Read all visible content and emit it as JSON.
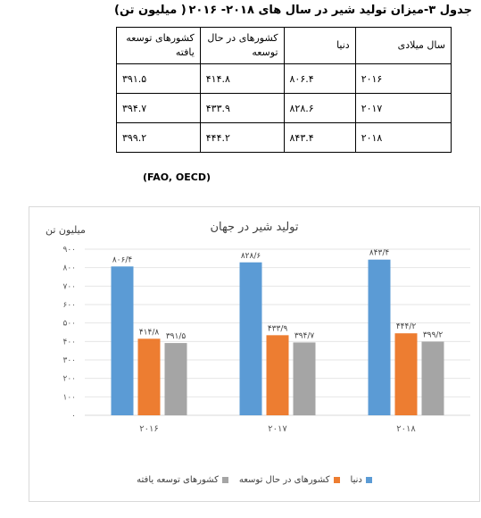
{
  "caption": {
    "title": "جدول ۳-میزان تولید شیر در سال های ۲۰۱۸- ۲۰۱۶",
    "unit": "( میلیون تن)"
  },
  "table": {
    "headers": [
      "سال میلادی",
      "دنیا",
      "کشورهای در حال توسعه",
      "کشورهای توسعه یافته"
    ],
    "rows": [
      [
        "۲۰۱۶",
        "۸۰۶.۴",
        "۴۱۴.۸",
        "۳۹۱.۵"
      ],
      [
        "۲۰۱۷",
        "۸۲۸.۶",
        "۴۳۳.۹",
        "۳۹۴.۷"
      ],
      [
        "۲۰۱۸",
        "۸۴۳.۴",
        "۴۴۴.۲",
        "۳۹۹.۲"
      ]
    ]
  },
  "source": "(FAO, OECD)",
  "chart_data": {
    "type": "bar",
    "title": "تولید شیر در جهان",
    "ylabel": "میلیون تن",
    "categories": [
      "۲۰۱۶",
      "۲۰۱۷",
      "۲۰۱۸"
    ],
    "ylim": [
      0,
      900
    ],
    "yticks": [
      "۰",
      "۱۰۰",
      "۲۰۰",
      "۳۰۰",
      "۴۰۰",
      "۵۰۰",
      "۶۰۰",
      "۷۰۰",
      "۸۰۰",
      "۹۰۰"
    ],
    "grid": true,
    "legend_position": "bottom",
    "series": [
      {
        "name": "دنیا",
        "color": "#5b9bd5",
        "values": [
          806.4,
          828.6,
          843.4
        ],
        "labels": [
          "۸۰۶/۴",
          "۸۲۸/۶",
          "۸۴۳/۴"
        ]
      },
      {
        "name": "کشورهای در حال توسعه",
        "color": "#ed7d31",
        "values": [
          414.8,
          433.9,
          444.2
        ],
        "labels": [
          "۴۱۴/۸",
          "۴۳۳/۹",
          "۴۴۴/۲"
        ]
      },
      {
        "name": "کشورهای توسعه یافته",
        "color": "#a5a5a5",
        "values": [
          391.5,
          394.7,
          399.2
        ],
        "labels": [
          "۳۹۱/۵",
          "۳۹۴/۷",
          "۳۹۹/۲"
        ]
      }
    ]
  }
}
